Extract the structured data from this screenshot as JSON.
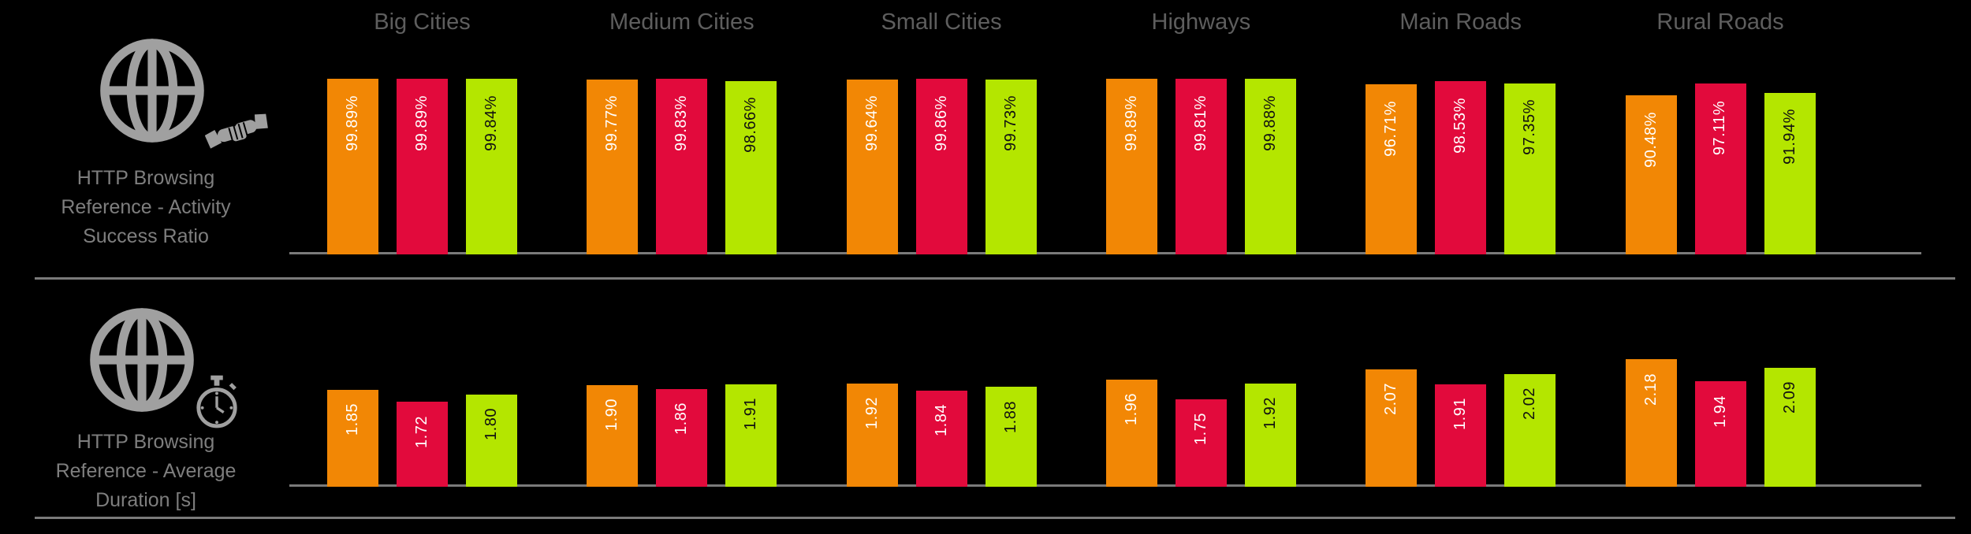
{
  "ui_colors": {
    "background": "#000000",
    "category_title": "#5e5e5e",
    "metric_label": "#7e7e7e",
    "icon_gray": "#a0a0a0",
    "axis_line": "#7a7a7a"
  },
  "icons": {
    "row_success_ratio": [
      "globe-icon",
      "handshake-icon"
    ],
    "row_avg_duration": [
      "globe-icon",
      "stopwatch-icon"
    ]
  },
  "chart_data": [
    {
      "type": "bar",
      "title": "HTTP Browsing Reference - Activity Success Ratio",
      "row_label_lines": [
        "HTTP Browsing",
        "Reference - Activity",
        "Success Ratio"
      ],
      "categories": [
        "Big Cities",
        "Medium Cities",
        "Small Cities",
        "Highways",
        "Main Roads",
        "Rural Roads"
      ],
      "show_category_titles": true,
      "value_suffix": "%",
      "decimals": 2,
      "ylim": [
        0,
        100
      ],
      "grid": false,
      "legend": "none",
      "series": [
        {
          "name": "orange",
          "color": "#F28705",
          "label_color": "#ffffff",
          "values": [
            99.89,
            99.77,
            99.64,
            99.89,
            96.71,
            90.48
          ]
        },
        {
          "name": "red",
          "color": "#E20A3C",
          "label_color": "#ffffff",
          "values": [
            99.89,
            99.83,
            99.86,
            99.81,
            98.53,
            97.11
          ]
        },
        {
          "name": "green",
          "color": "#B4E600",
          "label_color": "#111111",
          "values": [
            99.84,
            98.66,
            99.73,
            99.88,
            97.35,
            91.94
          ]
        }
      ]
    },
    {
      "type": "bar",
      "title": "HTTP Browsing Reference - Average Duration [s]",
      "row_label_lines": [
        "HTTP Browsing",
        "Reference - Average",
        "Duration [s]"
      ],
      "categories": [
        "Big Cities",
        "Medium Cities",
        "Small Cities",
        "Highways",
        "Main Roads",
        "Rural Roads"
      ],
      "show_category_titles": false,
      "value_suffix": "",
      "decimals": 2,
      "ylim": [
        0.8,
        2.3
      ],
      "grid": false,
      "legend": "none",
      "series": [
        {
          "name": "orange",
          "color": "#F28705",
          "label_color": "#ffffff",
          "values": [
            1.85,
            1.9,
            1.92,
            1.96,
            2.07,
            2.18
          ]
        },
        {
          "name": "red",
          "color": "#E20A3C",
          "label_color": "#ffffff",
          "values": [
            1.72,
            1.86,
            1.84,
            1.75,
            1.91,
            1.94
          ]
        },
        {
          "name": "green",
          "color": "#B4E600",
          "label_color": "#111111",
          "values": [
            1.8,
            1.91,
            1.88,
            1.92,
            2.02,
            2.09
          ]
        }
      ]
    }
  ]
}
